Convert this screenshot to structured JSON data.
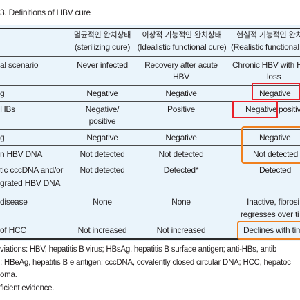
{
  "caption": "3. Definitions of HBV cure",
  "columns": [
    {
      "korean": "멸균적인 완치상태",
      "english": "(sterilizing cure)"
    },
    {
      "korean": "이상적 기능적인 완치상태",
      "english": "(Idealistic functional cure)"
    },
    {
      "korean": "현실적 기능적인 완치",
      "english": "(Realistic functional"
    }
  ],
  "rows": [
    {
      "label": [
        "al scenario"
      ],
      "c1": [
        "Never infected"
      ],
      "c2": [
        "Recovery after acute",
        "HBV"
      ],
      "c3": [
        "Chronic HBV with H",
        "loss"
      ]
    },
    {
      "label": [
        "g"
      ],
      "c1": [
        "Negative"
      ],
      "c2": [
        "Negative"
      ],
      "c3": [
        "Negative"
      ]
    },
    {
      "label": [
        "HBs"
      ],
      "c1": [
        "Negative/",
        "positive"
      ],
      "c2": [
        "Positive"
      ],
      "c3": [
        "Negative",
        "positiv"
      ]
    },
    {
      "label": [
        "g"
      ],
      "c1": [
        "Negative"
      ],
      "c2": [
        "Negative"
      ],
      "c3": [
        "Negative"
      ]
    },
    {
      "label": [
        "n HBV DNA"
      ],
      "c1": [
        "Not detected"
      ],
      "c2": [
        "Not detected"
      ],
      "c3": [
        "Not detected"
      ]
    },
    {
      "label": [
        "tic cccDNA and/or",
        "grated HBV DNA"
      ],
      "c1": [
        "Not detected"
      ],
      "c2": [
        "Detected*"
      ],
      "c3": [
        "Detected"
      ]
    },
    {
      "label": [
        "disease"
      ],
      "c1": [
        "None"
      ],
      "c2": [
        "None"
      ],
      "c3": [
        "Inactive, fibrosi",
        "regresses over ti"
      ]
    },
    {
      "label": [
        "of HCC"
      ],
      "c1": [
        "Not increased"
      ],
      "c2": [
        "Not increased"
      ],
      "c3": [
        "Declines with tim"
      ]
    }
  ],
  "footnotes": [
    "viations: HBV, hepatitis B virus; HBsAg, hepatitis B surface antigen; anti-HBs, antib",
    "; HBeAg, hepatitis B e antigen; cccDNA, covalently closed circular DNA; HCC, hepatoc",
    "oma.",
    "ficient evidence."
  ],
  "highlight_colors": {
    "red": "#e8202a",
    "orange": "#f0801e",
    "table_background": "#eaf4fb"
  }
}
